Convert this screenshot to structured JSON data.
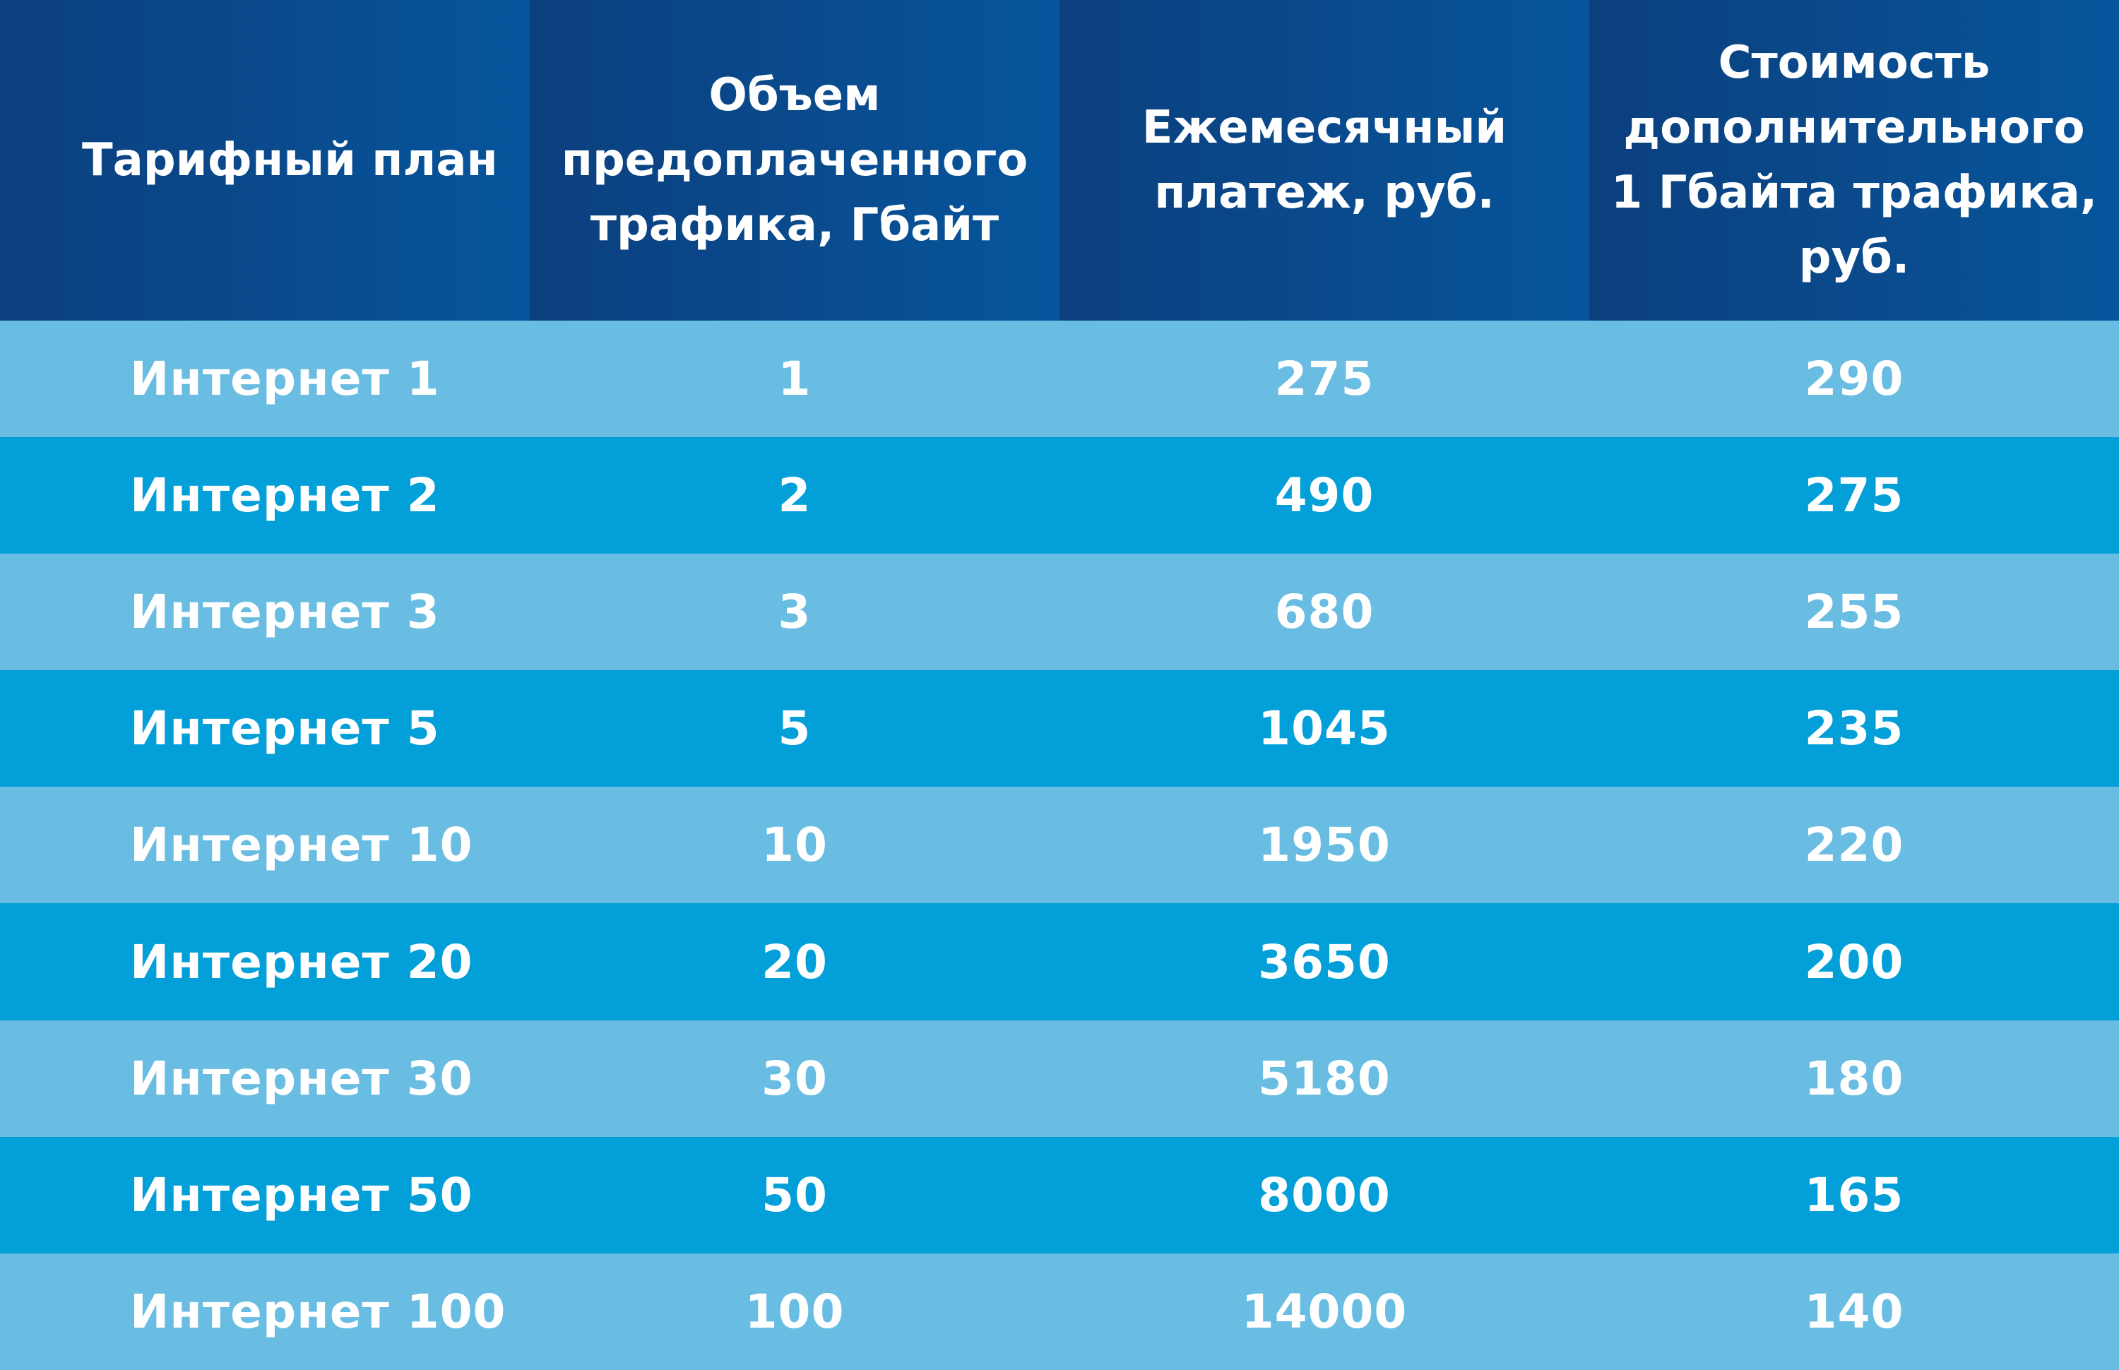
{
  "headers": [
    "Тарифный план",
    "Объем\nпредоплаченного\nтрафика, Гбайт",
    "Ежемесячный\nплатеж, руб.",
    "Стоимость\nдополнительного\n1 Гбайта трафика,\nруб."
  ],
  "rows": [
    {
      "plan": "Интернет 1",
      "volume": "1",
      "monthly": "275",
      "extra": "290"
    },
    {
      "plan": "Интернет 2",
      "volume": "2",
      "monthly": "490",
      "extra": "275"
    },
    {
      "plan": "Интернет 3",
      "volume": "3",
      "monthly": "680",
      "extra": "255"
    },
    {
      "plan": "Интернет 5",
      "volume": "5",
      "monthly": "1045",
      "extra": "235"
    },
    {
      "plan": "Интернет 10",
      "volume": "10",
      "monthly": "1950",
      "extra": "220"
    },
    {
      "plan": "Интернет 20",
      "volume": "20",
      "monthly": "3650",
      "extra": "200"
    },
    {
      "plan": "Интернет 30",
      "volume": "30",
      "monthly": "5180",
      "extra": "180"
    },
    {
      "plan": "Интернет 50",
      "volume": "50",
      "monthly": "8000",
      "extra": "165"
    },
    {
      "plan": "Интернет 100",
      "volume": "100",
      "monthly": "14000",
      "extra": "140"
    }
  ],
  "colors": {
    "header_bg": "#0a4a8c",
    "row_light": "#69bde2",
    "row_dark": "#029fd9",
    "text": "#ffffff"
  }
}
